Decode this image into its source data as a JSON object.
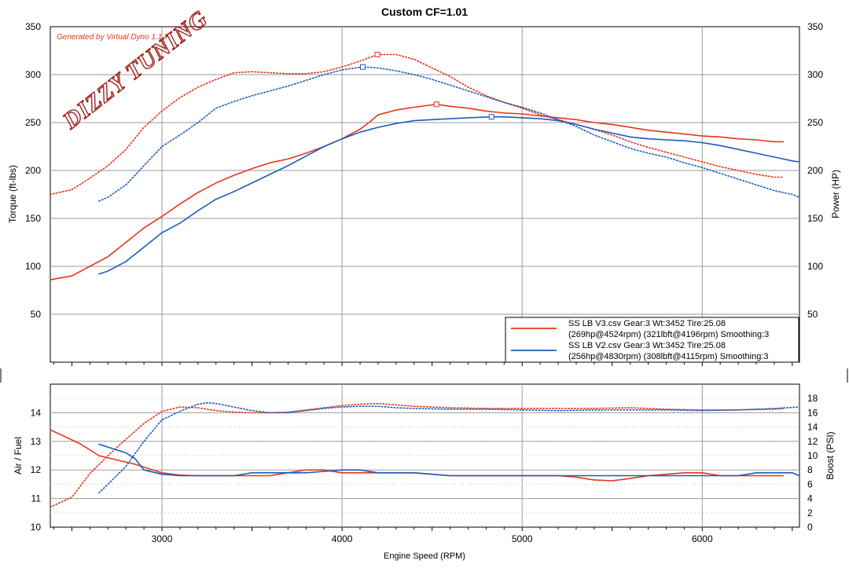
{
  "title": "Custom CF=1.01",
  "watermark": "Generated by Virtual Dyno 1.1.7",
  "logo_text": "DIZZY TUNING",
  "colors": {
    "v3": "#e8341c",
    "v2": "#1c5cbd",
    "grid": "#9a9a9a"
  },
  "legend": [
    {
      "line1": "SS LB V3.csv Gear:3 Wt:3452 Tire:25.08",
      "line2": "(269hp@4524rpm) (321lbft@4196rpm) Smoothing:3",
      "color": "#e8341c"
    },
    {
      "line1": "SS LB V2.csv Gear:3 Wt:3452 Tire:25.08",
      "line2": "(256hp@4830rpm) (308lbft@4115rpm) Smoothing:3",
      "color": "#1c5cbd"
    }
  ],
  "chart_data": [
    {
      "type": "line",
      "title": "Custom CF=1.01",
      "xlabel": "",
      "ylabel": "Torque (ft-lbs)",
      "y2label": "Power (HP)",
      "xlim": [
        2380,
        6540
      ],
      "ylim": [
        0,
        350
      ],
      "y2lim": [
        0,
        350
      ],
      "grid": true,
      "legend_position": "bottom-right",
      "xticks": [
        3000,
        4000,
        5000,
        6000
      ],
      "yticks": [
        50,
        100,
        150,
        200,
        250,
        300,
        350
      ],
      "y2ticks": [
        50,
        100,
        150,
        200,
        250,
        300,
        350
      ],
      "series": [
        {
          "name": "SS LB V3.csv",
          "measure": "power",
          "style": "solid",
          "color": "#e8341c",
          "x": [
            2380,
            2500,
            2600,
            2700,
            2800,
            2900,
            3000,
            3100,
            3200,
            3300,
            3400,
            3500,
            3600,
            3700,
            3800,
            3900,
            4000,
            4100,
            4150,
            4200,
            4300,
            4400,
            4524,
            4600,
            4700,
            4800,
            4900,
            5000,
            5100,
            5200,
            5300,
            5400,
            5500,
            5600,
            5700,
            5800,
            5900,
            6000,
            6100,
            6200,
            6300,
            6400,
            6450
          ],
          "y": [
            86,
            90,
            100,
            110,
            125,
            140,
            152,
            165,
            177,
            187,
            195,
            202,
            208,
            212,
            218,
            225,
            233,
            243,
            250,
            258,
            263,
            266,
            269,
            267,
            265,
            262,
            260,
            259,
            257,
            255,
            253,
            250,
            248,
            245,
            242,
            240,
            238,
            236,
            235,
            233,
            232,
            230,
            230
          ],
          "markers": [
            {
              "x": 4524,
              "y": 269
            }
          ]
        },
        {
          "name": "SS LB V3.csv",
          "measure": "torque",
          "style": "dotted",
          "color": "#e8341c",
          "x": [
            2380,
            2500,
            2600,
            2700,
            2800,
            2900,
            3000,
            3100,
            3200,
            3300,
            3400,
            3500,
            3600,
            3700,
            3800,
            3900,
            4000,
            4100,
            4196,
            4300,
            4400,
            4500,
            4600,
            4700,
            4800,
            4900,
            5000,
            5100,
            5200,
            5300,
            5400,
            5500,
            5600,
            5700,
            5800,
            5900,
            6000,
            6100,
            6200,
            6300,
            6400,
            6450
          ],
          "y": [
            175,
            180,
            192,
            205,
            222,
            245,
            262,
            276,
            287,
            295,
            302,
            303,
            302,
            301,
            301,
            303,
            308,
            314,
            321,
            321,
            316,
            307,
            298,
            287,
            278,
            271,
            265,
            258,
            253,
            248,
            243,
            237,
            230,
            224,
            219,
            214,
            209,
            204,
            200,
            196,
            193,
            193
          ],
          "markers": [
            {
              "x": 4196,
              "y": 321
            }
          ]
        },
        {
          "name": "SS LB V2.csv",
          "measure": "power",
          "style": "solid",
          "color": "#1c5cbd",
          "x": [
            2650,
            2700,
            2800,
            2900,
            3000,
            3100,
            3200,
            3300,
            3400,
            3500,
            3600,
            3700,
            3800,
            3900,
            4000,
            4100,
            4200,
            4300,
            4400,
            4500,
            4600,
            4700,
            4830,
            4900,
            5000,
            5100,
            5200,
            5300,
            5400,
            5500,
            5600,
            5700,
            5800,
            5900,
            6000,
            6100,
            6200,
            6300,
            6400,
            6500,
            6540
          ],
          "y": [
            92,
            95,
            105,
            120,
            135,
            145,
            158,
            170,
            178,
            187,
            196,
            205,
            215,
            225,
            233,
            240,
            245,
            249,
            252,
            253,
            254,
            255,
            256,
            256,
            255,
            254,
            252,
            248,
            243,
            239,
            235,
            233,
            232,
            231,
            229,
            226,
            222,
            218,
            214,
            210,
            209
          ],
          "markers": [
            {
              "x": 4830,
              "y": 256
            }
          ]
        },
        {
          "name": "SS LB V2.csv",
          "measure": "torque",
          "style": "dotted",
          "color": "#1c5cbd",
          "x": [
            2650,
            2700,
            2800,
            2900,
            3000,
            3100,
            3200,
            3300,
            3400,
            3500,
            3600,
            3700,
            3800,
            3900,
            4000,
            4115,
            4200,
            4300,
            4400,
            4500,
            4600,
            4700,
            4800,
            4900,
            5000,
            5100,
            5200,
            5300,
            5400,
            5500,
            5600,
            5700,
            5800,
            5900,
            6000,
            6100,
            6200,
            6300,
            6400,
            6500,
            6540
          ],
          "y": [
            168,
            172,
            185,
            205,
            225,
            237,
            250,
            265,
            272,
            278,
            283,
            288,
            294,
            300,
            305,
            308,
            307,
            304,
            300,
            295,
            289,
            283,
            277,
            271,
            266,
            260,
            253,
            246,
            237,
            230,
            223,
            218,
            214,
            208,
            203,
            197,
            191,
            185,
            179,
            175,
            172
          ],
          "markers": [
            {
              "x": 4115,
              "y": 308
            }
          ]
        }
      ]
    },
    {
      "type": "line",
      "xlabel": "Engine Speed (RPM)",
      "ylabel": "Air / Fuel",
      "y2label": "Boost (PSI)",
      "xlim": [
        2380,
        6540
      ],
      "ylim": [
        10,
        15
      ],
      "y2lim": [
        0,
        20
      ],
      "grid": true,
      "xticks": [
        3000,
        4000,
        5000,
        6000
      ],
      "yticks": [
        10,
        11,
        12,
        13,
        14
      ],
      "y2ticks": [
        0,
        2,
        4,
        6,
        8,
        10,
        12,
        14,
        16,
        18
      ],
      "series": [
        {
          "name": "SS LB V3.csv",
          "measure": "air_fuel",
          "style": "solid",
          "color": "#e8341c",
          "x": [
            2380,
            2450,
            2550,
            2650,
            2750,
            2850,
            2950,
            3000,
            3100,
            3200,
            3300,
            3400,
            3500,
            3600,
            3700,
            3800,
            3900,
            4000,
            4100,
            4200,
            4300,
            4400,
            4500,
            4600,
            4700,
            4800,
            4900,
            5000,
            5100,
            5200,
            5300,
            5400,
            5500,
            5600,
            5700,
            5800,
            5900,
            6000,
            6100,
            6200,
            6300,
            6400,
            6450
          ],
          "y": [
            13.4,
            13.2,
            12.9,
            12.5,
            12.35,
            12.2,
            12.0,
            11.9,
            11.82,
            11.8,
            11.8,
            11.8,
            11.8,
            11.8,
            11.9,
            12.0,
            12.0,
            11.9,
            11.9,
            11.9,
            11.9,
            11.9,
            11.85,
            11.8,
            11.8,
            11.8,
            11.8,
            11.8,
            11.8,
            11.8,
            11.75,
            11.65,
            11.62,
            11.7,
            11.8,
            11.85,
            11.9,
            11.9,
            11.8,
            11.8,
            11.8,
            11.8,
            11.8
          ]
        },
        {
          "name": "SS LB V3.csv",
          "measure": "boost",
          "style": "dotted",
          "color": "#e8341c",
          "x": [
            2380,
            2500,
            2600,
            2700,
            2800,
            2900,
            3000,
            3100,
            3200,
            3300,
            3400,
            3500,
            3600,
            3700,
            3800,
            3900,
            4000,
            4100,
            4200,
            4300,
            4400,
            4600,
            4800,
            5000,
            5200,
            5400,
            5600,
            5800,
            6000,
            6200,
            6400,
            6450
          ],
          "y": [
            2.8,
            4.2,
            7.5,
            10.0,
            12.3,
            14.5,
            16.2,
            16.8,
            16.7,
            16.3,
            16.1,
            16.0,
            16.0,
            16.1,
            16.4,
            16.7,
            17.0,
            17.2,
            17.3,
            17.1,
            16.9,
            16.7,
            16.6,
            16.6,
            16.6,
            16.6,
            16.7,
            16.5,
            16.4,
            16.4,
            16.5,
            16.6
          ]
        },
        {
          "name": "SS LB V2.csv",
          "measure": "air_fuel",
          "style": "solid",
          "color": "#1c5cbd",
          "x": [
            2650,
            2700,
            2800,
            2850,
            2900,
            3000,
            3100,
            3200,
            3300,
            3400,
            3500,
            3600,
            3700,
            3800,
            3900,
            4000,
            4100,
            4200,
            4300,
            4400,
            4500,
            4600,
            4800,
            5000,
            5200,
            5400,
            5600,
            5800,
            6000,
            6200,
            6300,
            6400,
            6500,
            6540
          ],
          "y": [
            12.9,
            12.8,
            12.6,
            12.4,
            12.0,
            11.85,
            11.8,
            11.8,
            11.8,
            11.8,
            11.9,
            11.9,
            11.9,
            11.9,
            11.95,
            12.0,
            12.0,
            11.9,
            11.9,
            11.9,
            11.85,
            11.8,
            11.8,
            11.8,
            11.8,
            11.8,
            11.8,
            11.8,
            11.8,
            11.8,
            11.9,
            11.9,
            11.9,
            11.8
          ]
        },
        {
          "name": "SS LB V2.csv",
          "measure": "boost",
          "style": "dotted",
          "color": "#1c5cbd",
          "x": [
            2650,
            2700,
            2800,
            2900,
            3000,
            3100,
            3200,
            3250,
            3300,
            3400,
            3500,
            3600,
            3700,
            3800,
            3900,
            4000,
            4100,
            4200,
            4300,
            4400,
            4600,
            4800,
            5000,
            5200,
            5400,
            5600,
            5800,
            6000,
            6200,
            6400,
            6540
          ],
          "y": [
            4.8,
            6.0,
            8.5,
            12.0,
            15.0,
            16.2,
            17.2,
            17.4,
            17.3,
            16.8,
            16.3,
            16.0,
            16.0,
            16.3,
            16.6,
            16.8,
            16.9,
            16.9,
            16.7,
            16.6,
            16.5,
            16.5,
            16.4,
            16.3,
            16.4,
            16.4,
            16.4,
            16.3,
            16.4,
            16.6,
            16.8
          ]
        }
      ]
    }
  ]
}
